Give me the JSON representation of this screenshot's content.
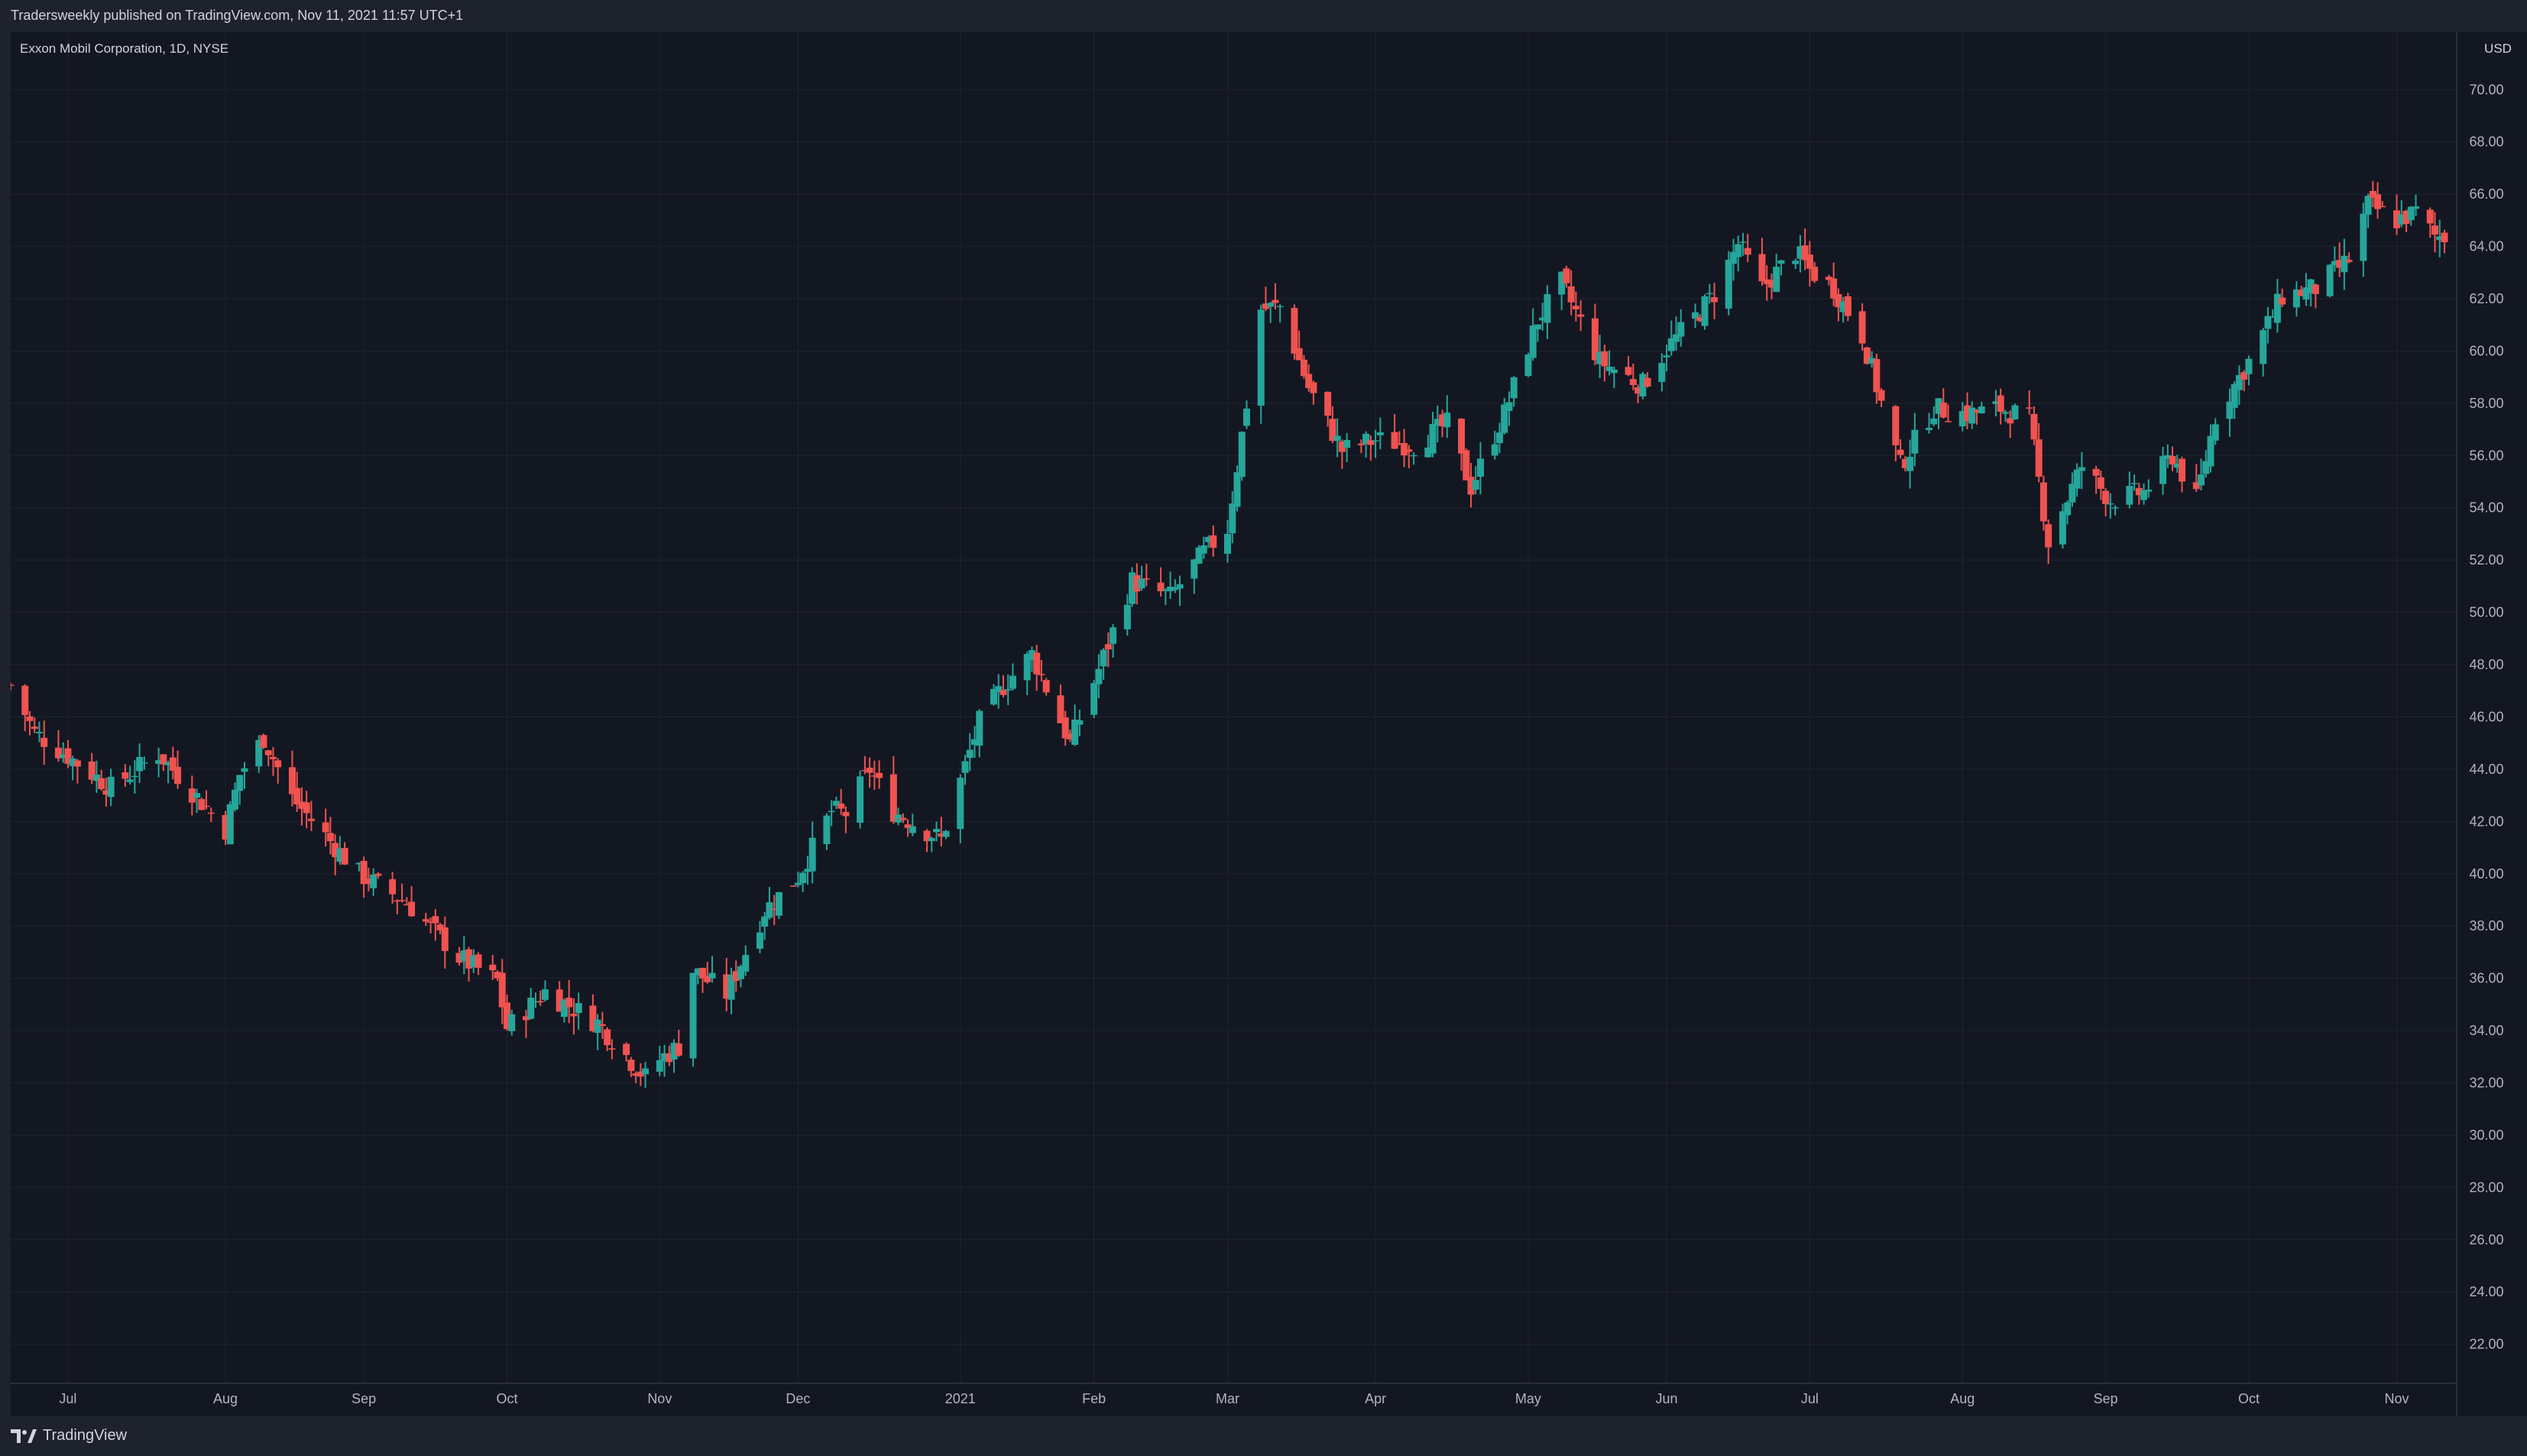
{
  "header": {
    "published_text": "Tradersweekly published on TradingView.com, Nov 11, 2021 11:57 UTC+1"
  },
  "chart": {
    "symbol_title": "Exxon Mobil Corporation, 1D, NYSE",
    "currency": "USD"
  },
  "footer": {
    "brand": "TradingView"
  },
  "colors": {
    "background": "#131722",
    "frame": "#1e222d",
    "grid": "#1f2431",
    "up": "#26a69a",
    "down": "#ef5350",
    "text": "#b2b5be"
  },
  "chart_data": {
    "type": "candlestick",
    "title": "Exxon Mobil Corporation, 1D, NYSE",
    "yunit": "USD",
    "ylim": [
      20.5,
      72.2
    ],
    "yticks": [
      "70.00",
      "68.00",
      "66.00",
      "64.00",
      "62.00",
      "60.00",
      "58.00",
      "56.00",
      "54.00",
      "52.00",
      "50.00",
      "48.00",
      "46.00",
      "44.00",
      "42.00",
      "40.00",
      "38.00",
      "36.00",
      "34.00",
      "32.00",
      "30.00",
      "28.00",
      "26.00",
      "24.00",
      "22.00"
    ],
    "x_range": [
      "2020-06-19",
      "2021-11-11"
    ],
    "xticks": [
      {
        "label": "Jul",
        "date": "2020-07-01"
      },
      {
        "label": "Aug",
        "date": "2020-08-03"
      },
      {
        "label": "Sep",
        "date": "2020-09-01"
      },
      {
        "label": "Oct",
        "date": "2020-10-01"
      },
      {
        "label": "Nov",
        "date": "2020-11-02"
      },
      {
        "label": "Dec",
        "date": "2020-12-01"
      },
      {
        "label": "2021",
        "date": "2021-01-04"
      },
      {
        "label": "Feb",
        "date": "2021-02-01"
      },
      {
        "label": "Mar",
        "date": "2021-03-01"
      },
      {
        "label": "Apr",
        "date": "2021-04-01"
      },
      {
        "label": "May",
        "date": "2021-05-03"
      },
      {
        "label": "Jun",
        "date": "2021-06-01"
      },
      {
        "label": "Jul",
        "date": "2021-07-01"
      },
      {
        "label": "Aug",
        "date": "2021-08-02"
      },
      {
        "label": "Sep",
        "date": "2021-09-01"
      },
      {
        "label": "Oct",
        "date": "2021-10-01"
      },
      {
        "label": "Nov",
        "date": "2021-11-01"
      }
    ],
    "grid": true,
    "close_path": [
      [
        "2020-06-19",
        47.2
      ],
      [
        "2020-06-24",
        45.4
      ],
      [
        "2020-07-01",
        44.5
      ],
      [
        "2020-07-10",
        43.3
      ],
      [
        "2020-07-20",
        44.6
      ],
      [
        "2020-08-03",
        41.7
      ],
      [
        "2020-08-06",
        43.8
      ],
      [
        "2020-08-11",
        45.2
      ],
      [
        "2020-08-17",
        42.9
      ],
      [
        "2020-08-31",
        40.0
      ],
      [
        "2020-09-10",
        38.9
      ],
      [
        "2020-09-21",
        36.8
      ],
      [
        "2020-09-29",
        35.9
      ],
      [
        "2020-10-01",
        34.1
      ],
      [
        "2020-10-09",
        35.5
      ],
      [
        "2020-10-20",
        34.3
      ],
      [
        "2020-10-30",
        32.2
      ],
      [
        "2020-11-02",
        32.9
      ],
      [
        "2020-11-06",
        33.4
      ],
      [
        "2020-11-09",
        36.3
      ],
      [
        "2020-11-16",
        35.4
      ],
      [
        "2020-11-24",
        38.6
      ],
      [
        "2020-12-01",
        39.9
      ],
      [
        "2020-12-08",
        42.4
      ],
      [
        "2020-12-11",
        42.3
      ],
      [
        "2020-12-16",
        44.0
      ],
      [
        "2020-12-21",
        42.4
      ],
      [
        "2020-12-31",
        41.3
      ],
      [
        "2021-01-08",
        45.8
      ],
      [
        "2021-01-13",
        47.2
      ],
      [
        "2021-01-19",
        48.4
      ],
      [
        "2021-01-27",
        45.0
      ],
      [
        "2021-02-03",
        48.3
      ],
      [
        "2021-02-09",
        51.2
      ],
      [
        "2021-02-17",
        50.6
      ],
      [
        "2021-02-24",
        52.3
      ],
      [
        "2021-03-01",
        53.2
      ],
      [
        "2021-03-08",
        61.6
      ],
      [
        "2021-03-12",
        61.7
      ],
      [
        "2021-03-18",
        58.6
      ],
      [
        "2021-03-25",
        56.2
      ],
      [
        "2021-04-01",
        56.6
      ],
      [
        "2021-04-09",
        56.4
      ],
      [
        "2021-04-16",
        57.2
      ],
      [
        "2021-04-21",
        54.8
      ],
      [
        "2021-04-28",
        57.6
      ],
      [
        "2021-05-05",
        61.2
      ],
      [
        "2021-05-10",
        62.6
      ],
      [
        "2021-05-18",
        59.6
      ],
      [
        "2021-05-27",
        58.7
      ],
      [
        "2021-06-01",
        60.1
      ],
      [
        "2021-06-07",
        61.3
      ],
      [
        "2021-06-11",
        62.2
      ],
      [
        "2021-06-16",
        64.1
      ],
      [
        "2021-06-21",
        62.4
      ],
      [
        "2021-06-28",
        63.8
      ],
      [
        "2021-07-01",
        63.1
      ],
      [
        "2021-07-06",
        62.4
      ],
      [
        "2021-07-12",
        60.6
      ],
      [
        "2021-07-16",
        58.0
      ],
      [
        "2021-07-20",
        55.6
      ],
      [
        "2021-07-27",
        57.8
      ],
      [
        "2021-08-03",
        57.6
      ],
      [
        "2021-08-10",
        57.8
      ],
      [
        "2021-08-16",
        57.4
      ],
      [
        "2021-08-20",
        52.7
      ],
      [
        "2021-08-27",
        55.6
      ],
      [
        "2021-09-02",
        54.3
      ],
      [
        "2021-09-09",
        54.6
      ],
      [
        "2021-09-15",
        56.0
      ],
      [
        "2021-09-20",
        54.3
      ],
      [
        "2021-09-24",
        57.5
      ],
      [
        "2021-10-01",
        59.6
      ],
      [
        "2021-10-08",
        62.1
      ],
      [
        "2021-10-15",
        62.4
      ],
      [
        "2021-10-22",
        63.5
      ],
      [
        "2021-10-26",
        65.6
      ],
      [
        "2021-11-01",
        65.0
      ],
      [
        "2021-11-05",
        65.3
      ],
      [
        "2021-11-09",
        64.4
      ]
    ]
  }
}
